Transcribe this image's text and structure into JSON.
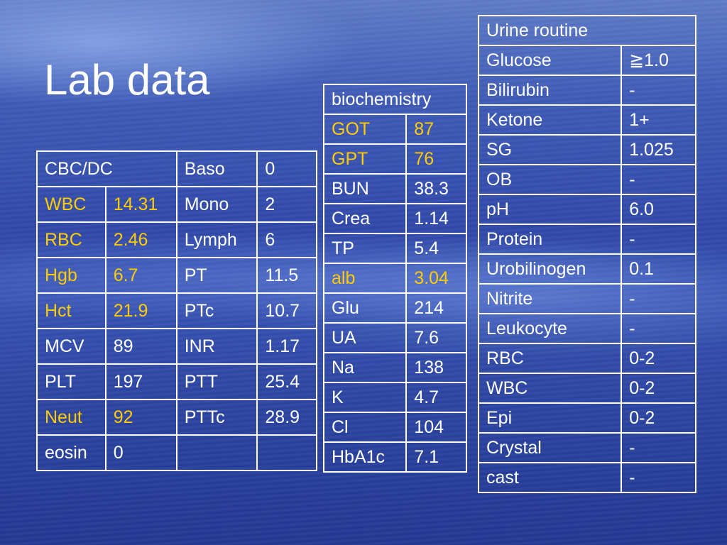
{
  "title": "Lab data",
  "cbc": {
    "header": "CBC/DC",
    "rows": [
      {
        "l1": "WBC",
        "v1": "14.31",
        "l2": "Mono",
        "v2": "2"
      },
      {
        "l1": "RBC",
        "v1": "2.46",
        "l2": "Lymph",
        "v2": "6"
      },
      {
        "l1": "Hgb",
        "v1": "6.7",
        "l2": "PT",
        "v2": "11.5"
      },
      {
        "l1": "Hct",
        "v1": "21.9",
        "l2": "PTc",
        "v2": "10.7"
      },
      {
        "l1": "MCV",
        "v1": "89",
        "l2": "INR",
        "v2": "1.17"
      },
      {
        "l1": "PLT",
        "v1": "197",
        "l2": "PTT",
        "v2": "25.4"
      },
      {
        "l1": "Neut",
        "v1": "92",
        "l2": "PTTc",
        "v2": "28.9"
      },
      {
        "l1": "eosin",
        "v1": "0",
        "l2": "",
        "v2": ""
      }
    ],
    "baso_label": "Baso",
    "baso_value": "0"
  },
  "biochemistry": {
    "header": "biochemistry",
    "rows": [
      {
        "label": "GOT",
        "value": "87"
      },
      {
        "label": "GPT",
        "value": "76"
      },
      {
        "label": "BUN",
        "value": "38.3"
      },
      {
        "label": "Crea",
        "value": "1.14"
      },
      {
        "label": "TP",
        "value": "5.4"
      },
      {
        "label": "alb",
        "value": "3.04"
      },
      {
        "label": "Glu",
        "value": "214"
      },
      {
        "label": "UA",
        "value": "7.6"
      },
      {
        "label": "Na",
        "value": "138"
      },
      {
        "label": "K",
        "value": "4.7"
      },
      {
        "label": "Cl",
        "value": "104"
      },
      {
        "label": "HbA1c",
        "value": "7.1"
      }
    ]
  },
  "urine": {
    "header": "Urine routine",
    "rows": [
      {
        "label": "Glucose",
        "value": "≧1.0"
      },
      {
        "label": "Bilirubin",
        "value": "-"
      },
      {
        "label": "Ketone",
        "value": "1+"
      },
      {
        "label": "SG",
        "value": "1.025"
      },
      {
        "label": "OB",
        "value": "-"
      },
      {
        "label": "pH",
        "value": "6.0"
      },
      {
        "label": "Protein",
        "value": "-"
      },
      {
        "label": "Urobilinogen",
        "value": "0.1"
      },
      {
        "label": "Nitrite",
        "value": "-"
      },
      {
        "label": "Leukocyte",
        "value": "-"
      },
      {
        "label": "RBC",
        "value": "0-2"
      },
      {
        "label": "WBC",
        "value": "0-2"
      },
      {
        "label": "Epi",
        "value": "0-2"
      },
      {
        "label": "Crystal",
        "value": "-"
      },
      {
        "label": "cast",
        "value": "-"
      }
    ]
  },
  "colors": {
    "highlight": "#ffcc00",
    "text": "#ffffff",
    "background": "#2d46a6"
  }
}
